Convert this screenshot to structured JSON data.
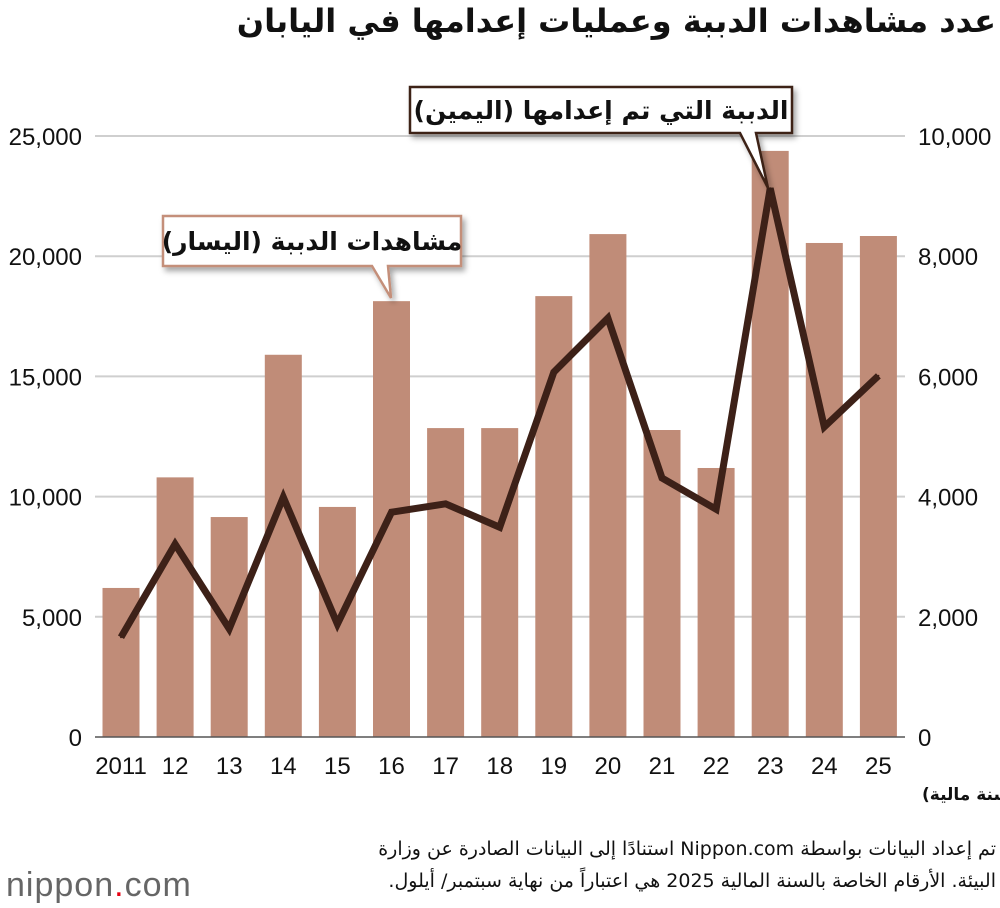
{
  "title": "عدد مشاهدات الدببة وعمليات إعدامها في اليابان",
  "chart_data": {
    "type": "bar+line",
    "title": "عدد مشاهدات الدببة وعمليات إعدامها في اليابان",
    "categories": [
      "2011",
      "12",
      "13",
      "14",
      "15",
      "16",
      "17",
      "18",
      "19",
      "20",
      "21",
      "22",
      "23",
      "24",
      "25"
    ],
    "xlabel": "(سنة مالية)",
    "left_axis": {
      "ylim": [
        0,
        25000
      ],
      "ticks": [
        "0",
        "5,000",
        "10,000",
        "15,000",
        "20,000",
        "25,000"
      ]
    },
    "right_axis": {
      "ylim": [
        0,
        10000
      ],
      "ticks": [
        "0",
        "2,000",
        "4,000",
        "6,000",
        "8,000",
        "10,000"
      ]
    },
    "grid": true,
    "series": [
      {
        "name": "مشاهدات الدببة (اليسار)",
        "type": "bar",
        "axis": "left",
        "color": "#c08c78",
        "values": [
          6200,
          10800,
          9150,
          15900,
          9570,
          18130,
          12850,
          12850,
          18340,
          20920,
          12770,
          11190,
          24380,
          20550,
          20840
        ]
      },
      {
        "name": "الدببة التي تم إعدامها (اليمين)",
        "type": "line",
        "axis": "right",
        "color": "#3d2118",
        "values": [
          1660,
          3210,
          1800,
          3990,
          1880,
          3740,
          3880,
          3490,
          6070,
          6970,
          4310,
          3790,
          9130,
          5160,
          6010
        ]
      }
    ]
  },
  "footer": {
    "line1": "تم إعداد البيانات بواسطة Nippon.com استنادًا إلى البيانات الصادرة عن وزارة",
    "line2": "البيئة. الأرقام الخاصة بالسنة المالية 2025 هي اعتباراً من نهاية سبتمبر/ أيلول.",
    "logo": "nippon.com"
  }
}
